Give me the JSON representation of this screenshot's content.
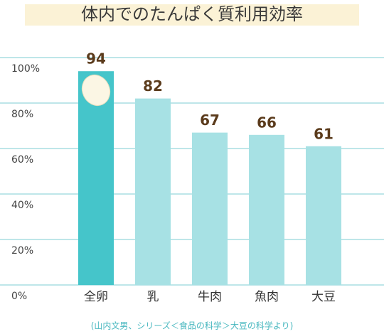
{
  "chart_data": {
    "type": "bar",
    "title": "体内でのたんぱく質利用効率",
    "categories": [
      "全卵",
      "乳",
      "牛肉",
      "魚肉",
      "大豆"
    ],
    "values": [
      94,
      82,
      67,
      66,
      61
    ],
    "colors": [
      "#45c5ca",
      "#a7e1e4",
      "#a7e1e4",
      "#a7e1e4",
      "#a7e1e4"
    ],
    "ylim": [
      0,
      100
    ],
    "yticks": [
      {
        "value": 0,
        "label": "0%"
      },
      {
        "value": 20,
        "label": "20%"
      },
      {
        "value": 40,
        "label": "40%"
      },
      {
        "value": 60,
        "label": "60%"
      },
      {
        "value": 80,
        "label": "80%"
      },
      {
        "value": 100,
        "label": "100%"
      }
    ],
    "grid": true,
    "source": "(山内文男、シリーズ＜食品の科学＞大豆の科学より)"
  }
}
